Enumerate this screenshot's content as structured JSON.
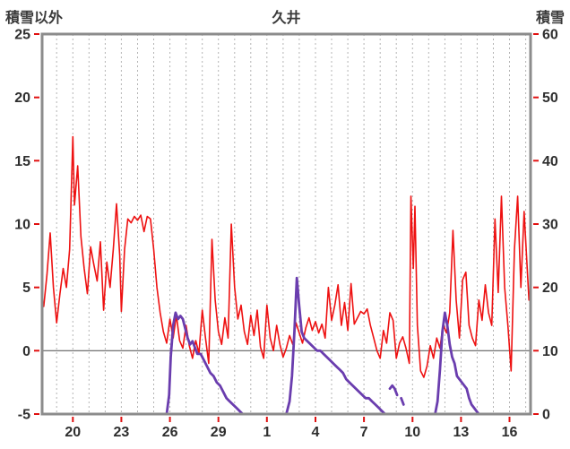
{
  "chart_data": {
    "type": "line",
    "title": "久井",
    "tick_color": "#e01010",
    "grid_color": "#b4b4b4",
    "frame_color": "#8c8c8c",
    "zero_line_color": "#606060",
    "left_axis": {
      "label": "積雪以外",
      "min": -5,
      "max": 25,
      "ticks": [
        25,
        20,
        15,
        10,
        5,
        0,
        -5
      ]
    },
    "right_axis": {
      "label": "積雪",
      "min": 0,
      "max": 60,
      "ticks": [
        60,
        50,
        40,
        30,
        20,
        10,
        0
      ]
    },
    "x_axis": {
      "range": [
        0,
        30.2
      ],
      "grid": {
        "start": 0.9,
        "step": 1
      },
      "ticks": [
        {
          "label": "20",
          "x": 1.9
        },
        {
          "label": "23",
          "x": 4.9
        },
        {
          "label": "26",
          "x": 7.9
        },
        {
          "label": "29",
          "x": 10.9
        },
        {
          "label": "1",
          "x": 13.9
        },
        {
          "label": "4",
          "x": 16.9
        },
        {
          "label": "7",
          "x": 19.9
        },
        {
          "label": "10",
          "x": 22.9
        },
        {
          "label": "13",
          "x": 25.9
        },
        {
          "label": "16",
          "x": 28.9
        }
      ]
    },
    "zero_line": 0,
    "series": [
      {
        "name": "temperature",
        "axis": "left",
        "color": "#ee1111",
        "width": 1.6,
        "points": [
          [
            0.1,
            3.5
          ],
          [
            0.3,
            6
          ],
          [
            0.5,
            9.3
          ],
          [
            0.7,
            5
          ],
          [
            0.9,
            2.2
          ],
          [
            1.1,
            4.5
          ],
          [
            1.3,
            6.5
          ],
          [
            1.5,
            5
          ],
          [
            1.7,
            8
          ],
          [
            1.9,
            16.9
          ],
          [
            2.0,
            11.5
          ],
          [
            2.2,
            14.6
          ],
          [
            2.4,
            9
          ],
          [
            2.6,
            6.5
          ],
          [
            2.8,
            4.5
          ],
          [
            3.0,
            8.2
          ],
          [
            3.2,
            6.8
          ],
          [
            3.4,
            5.5
          ],
          [
            3.6,
            8.6
          ],
          [
            3.8,
            3.2
          ],
          [
            4.0,
            7
          ],
          [
            4.2,
            5
          ],
          [
            4.4,
            8
          ],
          [
            4.6,
            11.6
          ],
          [
            4.8,
            7.5
          ],
          [
            4.9,
            3.1
          ],
          [
            5.1,
            8
          ],
          [
            5.3,
            10.4
          ],
          [
            5.5,
            10.1
          ],
          [
            5.7,
            10.6
          ],
          [
            5.9,
            10.3
          ],
          [
            6.1,
            10.7
          ],
          [
            6.3,
            9.4
          ],
          [
            6.5,
            10.6
          ],
          [
            6.7,
            10.4
          ],
          [
            6.9,
            8
          ],
          [
            7.1,
            5
          ],
          [
            7.3,
            3
          ],
          [
            7.5,
            1.5
          ],
          [
            7.7,
            0.6
          ],
          [
            7.9,
            2.5
          ],
          [
            8.1,
            1
          ],
          [
            8.3,
            2.8
          ],
          [
            8.5,
            0.8
          ],
          [
            8.7,
            0.2
          ],
          [
            8.9,
            2
          ],
          [
            9.1,
            0.4
          ],
          [
            9.3,
            -0.6
          ],
          [
            9.5,
            0.8
          ],
          [
            9.7,
            -0.2
          ],
          [
            9.9,
            3.2
          ],
          [
            10.1,
            1
          ],
          [
            10.3,
            -1
          ],
          [
            10.5,
            8.8
          ],
          [
            10.7,
            4
          ],
          [
            10.9,
            1.5
          ],
          [
            11.1,
            0.5
          ],
          [
            11.3,
            2.6
          ],
          [
            11.5,
            1
          ],
          [
            11.7,
            10
          ],
          [
            11.9,
            5
          ],
          [
            12.1,
            2.5
          ],
          [
            12.3,
            3.6
          ],
          [
            12.5,
            1.5
          ],
          [
            12.7,
            0.5
          ],
          [
            12.9,
            2.8
          ],
          [
            13.1,
            1.2
          ],
          [
            13.3,
            3.2
          ],
          [
            13.5,
            0.3
          ],
          [
            13.7,
            -0.6
          ],
          [
            13.9,
            3.6
          ],
          [
            14.1,
            1
          ],
          [
            14.3,
            0
          ],
          [
            14.5,
            2
          ],
          [
            14.7,
            0.5
          ],
          [
            14.9,
            -0.5
          ],
          [
            15.1,
            0.2
          ],
          [
            15.3,
            1.2
          ],
          [
            15.5,
            0.5
          ],
          [
            15.7,
            2.2
          ],
          [
            15.9,
            1.4
          ],
          [
            16.1,
            0.6
          ],
          [
            16.3,
            1.8
          ],
          [
            16.5,
            2.6
          ],
          [
            16.7,
            1.6
          ],
          [
            16.9,
            2.3
          ],
          [
            17.1,
            1.4
          ],
          [
            17.3,
            2.1
          ],
          [
            17.5,
            1
          ],
          [
            17.7,
            5
          ],
          [
            17.9,
            2.4
          ],
          [
            18.1,
            3.6
          ],
          [
            18.3,
            5.2
          ],
          [
            18.5,
            2
          ],
          [
            18.7,
            3.8
          ],
          [
            18.9,
            1.6
          ],
          [
            19.1,
            5.3
          ],
          [
            19.3,
            2.1
          ],
          [
            19.5,
            2.6
          ],
          [
            19.7,
            3.1
          ],
          [
            19.9,
            2.9
          ],
          [
            20.1,
            3.3
          ],
          [
            20.3,
            2
          ],
          [
            20.5,
            1
          ],
          [
            20.7,
            0
          ],
          [
            20.9,
            -0.6
          ],
          [
            21.1,
            1.6
          ],
          [
            21.3,
            0.6
          ],
          [
            21.5,
            3
          ],
          [
            21.7,
            2.4
          ],
          [
            21.9,
            -0.6
          ],
          [
            22.1,
            0.6
          ],
          [
            22.3,
            1.1
          ],
          [
            22.5,
            0.2
          ],
          [
            22.7,
            -1
          ],
          [
            22.8,
            12.2
          ],
          [
            22.95,
            6.5
          ],
          [
            23.05,
            11.4
          ],
          [
            23.2,
            2
          ],
          [
            23.4,
            -1.6
          ],
          [
            23.6,
            -2.1
          ],
          [
            23.8,
            -1.2
          ],
          [
            24.0,
            0.4
          ],
          [
            24.2,
            -0.6
          ],
          [
            24.4,
            1
          ],
          [
            24.6,
            0.2
          ],
          [
            24.8,
            2.1
          ],
          [
            25.0,
            1.4
          ],
          [
            25.2,
            3
          ],
          [
            25.4,
            9.5
          ],
          [
            25.6,
            4
          ],
          [
            25.8,
            1
          ],
          [
            26.0,
            5.6
          ],
          [
            26.2,
            6.2
          ],
          [
            26.4,
            2
          ],
          [
            26.6,
            1
          ],
          [
            26.8,
            0.4
          ],
          [
            27.0,
            4
          ],
          [
            27.2,
            2.4
          ],
          [
            27.4,
            5.2
          ],
          [
            27.6,
            3
          ],
          [
            27.8,
            2
          ],
          [
            28.0,
            10.4
          ],
          [
            28.2,
            4.6
          ],
          [
            28.4,
            12.2
          ],
          [
            28.6,
            5
          ],
          [
            28.8,
            2
          ],
          [
            29.0,
            -1.6
          ],
          [
            29.2,
            8
          ],
          [
            29.4,
            12.2
          ],
          [
            29.6,
            5
          ],
          [
            29.8,
            11
          ],
          [
            30.1,
            4
          ]
        ]
      },
      {
        "name": "snow-depth",
        "axis": "right",
        "color": "#6a3dae",
        "width": 2.8,
        "points": [
          [
            0,
            0
          ],
          [
            7.7,
            0
          ],
          [
            7.85,
            3
          ],
          [
            7.95,
            9
          ],
          [
            8.1,
            14
          ],
          [
            8.25,
            16
          ],
          [
            8.4,
            15
          ],
          [
            8.55,
            15.5
          ],
          [
            8.7,
            15
          ],
          [
            8.85,
            13.5
          ],
          [
            9.0,
            12
          ],
          [
            9.15,
            11
          ],
          [
            9.3,
            11.5
          ],
          [
            9.45,
            10.5
          ],
          [
            9.6,
            9.5
          ],
          [
            9.8,
            9.5
          ],
          [
            10.0,
            8.5
          ],
          [
            10.2,
            7.5
          ],
          [
            10.4,
            6.5
          ],
          [
            10.6,
            6
          ],
          [
            10.8,
            5
          ],
          [
            11.0,
            4.5
          ],
          [
            11.2,
            3.5
          ],
          [
            11.4,
            2.5
          ],
          [
            11.6,
            2
          ],
          [
            11.8,
            1.5
          ],
          [
            12.0,
            1
          ],
          [
            12.2,
            0.5
          ],
          [
            12.4,
            0
          ],
          [
            15.1,
            0
          ],
          [
            15.3,
            2
          ],
          [
            15.45,
            6
          ],
          [
            15.6,
            13
          ],
          [
            15.75,
            21.5
          ],
          [
            15.9,
            17
          ],
          [
            16.05,
            13
          ],
          [
            16.2,
            12
          ],
          [
            16.4,
            11.5
          ],
          [
            16.6,
            11
          ],
          [
            16.8,
            10.5
          ],
          [
            17.0,
            10
          ],
          [
            17.2,
            10
          ],
          [
            17.4,
            9.5
          ],
          [
            17.6,
            9
          ],
          [
            17.8,
            8.5
          ],
          [
            18.0,
            8
          ],
          [
            18.2,
            7.5
          ],
          [
            18.4,
            7
          ],
          [
            18.6,
            6.5
          ],
          [
            18.8,
            5.5
          ],
          [
            19.0,
            5
          ],
          [
            19.2,
            4.5
          ],
          [
            19.4,
            4
          ],
          [
            19.6,
            3.5
          ],
          [
            19.8,
            3
          ],
          [
            20.0,
            2.5
          ],
          [
            20.2,
            2.5
          ],
          [
            20.4,
            2
          ],
          [
            20.6,
            1.5
          ],
          [
            20.8,
            1
          ],
          [
            21.0,
            0.5
          ],
          [
            21.2,
            0
          ],
          null,
          [
            21.5,
            4
          ],
          [
            21.65,
            4.5
          ],
          [
            21.8,
            4
          ],
          [
            21.95,
            3
          ],
          null,
          [
            22.2,
            2.5
          ],
          [
            22.35,
            1.5
          ],
          null,
          [
            24.3,
            0
          ],
          [
            24.45,
            2
          ],
          [
            24.6,
            7
          ],
          [
            24.75,
            13
          ],
          [
            24.9,
            16
          ],
          [
            25.05,
            14
          ],
          [
            25.2,
            11
          ],
          [
            25.35,
            9
          ],
          [
            25.5,
            8
          ],
          [
            25.65,
            6
          ],
          [
            25.8,
            5.5
          ],
          [
            25.95,
            5
          ],
          [
            26.1,
            4.5
          ],
          [
            26.25,
            4
          ],
          [
            26.4,
            2.5
          ],
          [
            26.55,
            1.5
          ],
          [
            26.7,
            1
          ],
          [
            26.85,
            0.5
          ],
          [
            27.0,
            0
          ],
          [
            30.2,
            0
          ]
        ]
      }
    ]
  }
}
